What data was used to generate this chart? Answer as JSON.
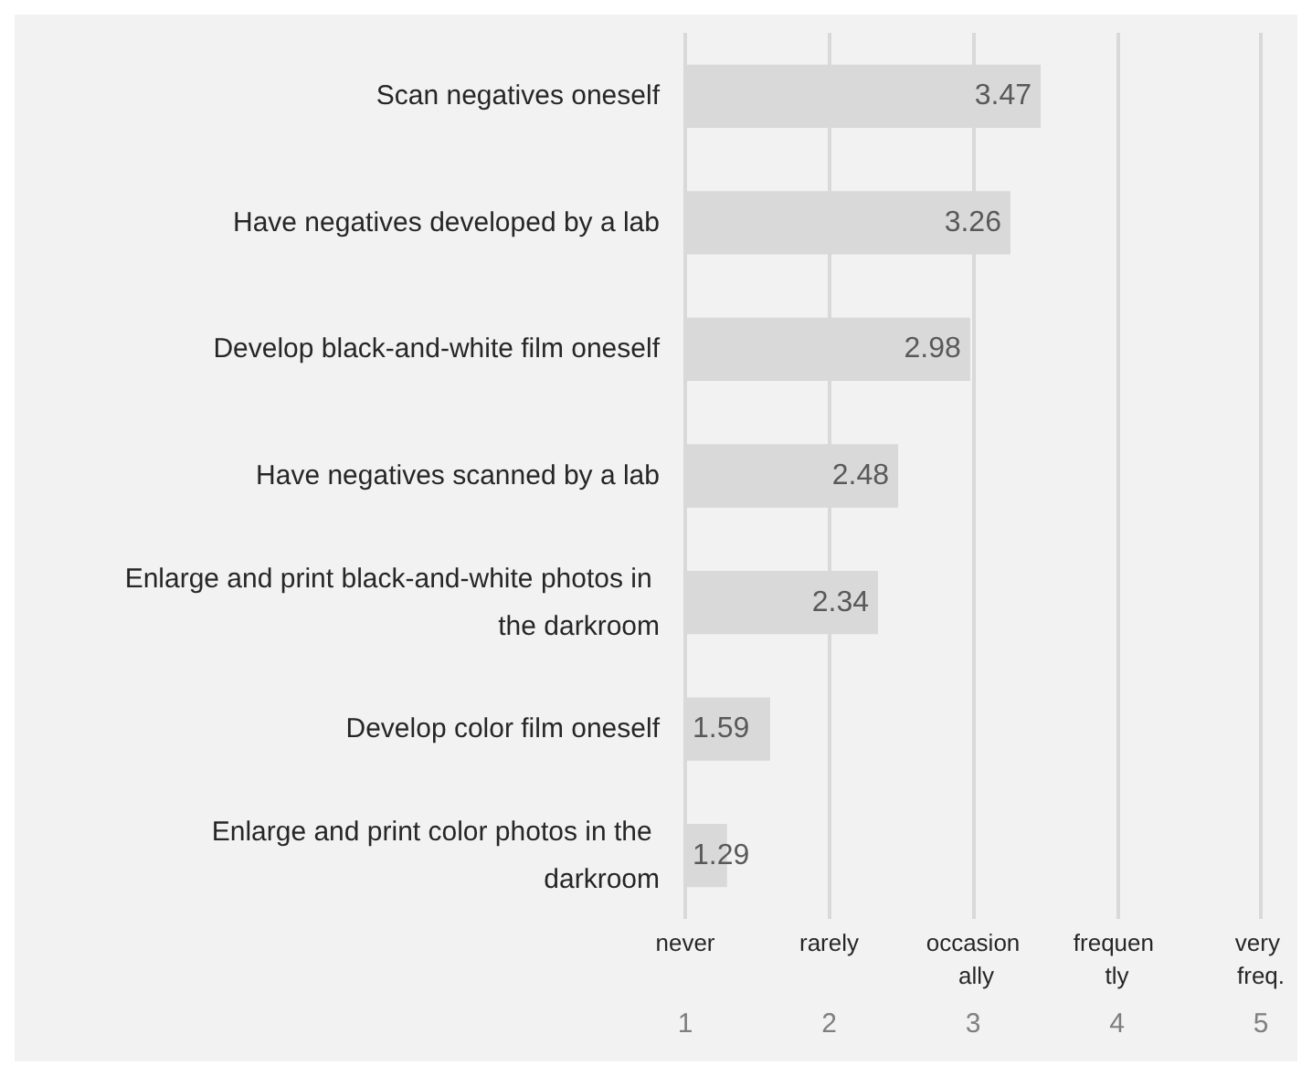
{
  "chart_data": {
    "type": "bar",
    "orientation": "horizontal",
    "categories": [
      "Scan negatives oneself",
      "Have negatives developed by a lab",
      "Develop black-and-white film oneself",
      "Have negatives scanned by a lab",
      "Enlarge and print black-and-white photos in the darkroom",
      "Develop color film oneself",
      "Enlarge and print color photos in the darkroom"
    ],
    "values": [
      3.47,
      3.26,
      2.98,
      2.48,
      2.34,
      1.59,
      1.29
    ],
    "color": "#d9d9d9",
    "data_labels": true,
    "xlim": [
      1,
      5
    ],
    "xticks": [
      1,
      2,
      3,
      4,
      5
    ],
    "annotations": [
      "never",
      "rarely",
      "occasion ally",
      "frequen tly",
      "very freq."
    ],
    "grid": "x"
  }
}
